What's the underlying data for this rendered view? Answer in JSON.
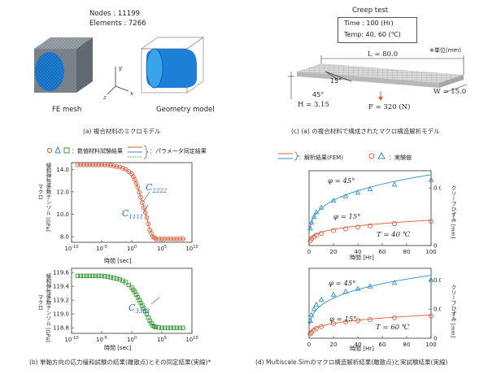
{
  "panel_a": {
    "nodes": "Nodes : 11199",
    "elements": "Elements : 7266",
    "fe_mesh_label": "FE mesh",
    "geometry_label": "Geometry model",
    "axis_x": "x",
    "axis_y": "y",
    "axis_z": "z",
    "caption": "(a) 複合材料のミクロモデル"
  },
  "panel_c": {
    "title": "Creep test",
    "time": "Time : 100 (Hr)",
    "temp": "Temp: 40, 60 (℃)",
    "unit_note": "※単位(mm)",
    "L": "L = 80.0",
    "W": "W = 15.0",
    "H": "H = 3.15",
    "F": "F = 320 (N)",
    "angle15": "15°",
    "angle45": "45°",
    "caption": "(c) (a) の複合材料で構成されたマクロ構造解析モデル"
  },
  "panel_b": {
    "legend_exp": "：数値材料試験結果",
    "legend_fit": "：パラメータ同定結果",
    "ylabel_main": "マクロ",
    "ylabel_sub": "緩和弾性係数テンソル [GPa]",
    "xlabel": "時間 [sec]",
    "top_label_c2222": "C2222",
    "top_label_c1111": "C1111",
    "bottom_label_c3333": "C3333",
    "caption": "(b) 単軸方向の応力緩和試験の結果(離散点)とその同定結果(実線)*"
  },
  "panel_d": {
    "legend_fem": "：解析結果(FEM)",
    "legend_exp": "：実験値",
    "ylabel_right": "クリープひずみ [mm]",
    "xlabel": "時間 [Hr]",
    "phi45": "φ = 45°",
    "phi15": "φ = 15°",
    "temp40": "T = 40 ℃",
    "temp60": "T = 60 ℃",
    "caption": "(d) Multiscale.Simのマクロ構造解析結果(離散点)と実試験結果(実線)"
  },
  "colors": {
    "red": "#e05a3a",
    "blue": "#2f8fd0",
    "green": "#3a9a3a",
    "cube_blue": "#1e7fd6"
  },
  "chart_data": [
    {
      "id": "b_top",
      "type": "scatter",
      "xscale": "log",
      "x_ticks": [
        "10^-10",
        "10^-5",
        "10^0",
        "10^5",
        "10^10"
      ],
      "y_ticks": [
        "14.0",
        "12.0",
        "10.0",
        "8.0"
      ],
      "ylim": [
        7.5,
        14.6
      ],
      "xlim_log10": [
        -10,
        10
      ],
      "series": [
        {
          "name": "C2222",
          "values": [
            [
              -9,
              14.4
            ],
            [
              -8,
              14.4
            ],
            [
              -7,
              14.4
            ],
            [
              -6,
              14.4
            ],
            [
              -5,
              14.4
            ],
            [
              -4,
              14.4
            ],
            [
              -3,
              14.3
            ],
            [
              -2,
              14.2
            ],
            [
              -1,
              14.0
            ],
            [
              0,
              13.6
            ],
            [
              0.5,
              13.1
            ],
            [
              1,
              12.4
            ],
            [
              1.5,
              11.5
            ],
            [
              2,
              10.6
            ],
            [
              2.5,
              9.7
            ],
            [
              3,
              8.6
            ],
            [
              3.5,
              8.0
            ],
            [
              4,
              7.8
            ],
            [
              5,
              7.8
            ],
            [
              6,
              7.8
            ],
            [
              7,
              7.8
            ],
            [
              8,
              7.8
            ],
            [
              9,
              7.8
            ]
          ]
        }
      ]
    },
    {
      "id": "b_bottom",
      "type": "scatter",
      "xscale": "log",
      "x_ticks": [
        "10^-10",
        "10^-5",
        "10^0",
        "10^5",
        "10^10"
      ],
      "y_ticks": [
        "119.6",
        "119.4",
        "119.2",
        "119.0",
        "118.8"
      ],
      "ylim": [
        118.72,
        119.66
      ],
      "xlim_log10": [
        -10,
        10
      ],
      "series": [
        {
          "name": "C3333",
          "values": [
            [
              -9,
              119.55
            ],
            [
              -8,
              119.55
            ],
            [
              -7,
              119.55
            ],
            [
              -6,
              119.55
            ],
            [
              -5,
              119.55
            ],
            [
              -4,
              119.54
            ],
            [
              -3,
              119.52
            ],
            [
              -2,
              119.5
            ],
            [
              -1,
              119.46
            ],
            [
              0,
              119.38
            ],
            [
              0.5,
              119.32
            ],
            [
              1,
              119.24
            ],
            [
              1.5,
              119.16
            ],
            [
              2,
              119.08
            ],
            [
              2.5,
              119.0
            ],
            [
              3,
              118.9
            ],
            [
              3.5,
              118.83
            ],
            [
              4,
              118.81
            ],
            [
              5,
              118.8
            ],
            [
              6,
              118.8
            ],
            [
              7,
              118.8
            ],
            [
              8,
              118.8
            ],
            [
              9,
              118.8
            ]
          ]
        }
      ]
    },
    {
      "id": "d_top",
      "type": "scatter",
      "x_ticks": [
        "0",
        "20",
        "40",
        "60",
        "80",
        "100"
      ],
      "y_ticks_right": [
        "0",
        "0.001"
      ],
      "xlim": [
        0,
        100
      ],
      "ylim": [
        0,
        0.0013
      ],
      "series": [
        {
          "name": "φ = 45° 実験値",
          "values": [
            [
              1,
              0.0003
            ],
            [
              2,
              0.0004
            ],
            [
              4,
              0.0005
            ],
            [
              6,
              0.00058
            ],
            [
              10,
              0.00066
            ],
            [
              20,
              0.00078
            ],
            [
              30,
              0.00086
            ],
            [
              40,
              0.00092
            ],
            [
              50,
              0.00098
            ],
            [
              70,
              0.00106
            ],
            [
              100,
              0.00114
            ]
          ]
        },
        {
          "name": "φ = 15° 実験値",
          "values": [
            [
              1,
              8e-05
            ],
            [
              2,
              0.00012
            ],
            [
              4,
              0.00015
            ],
            [
              6,
              0.00018
            ],
            [
              10,
              0.00021
            ],
            [
              20,
              0.00026
            ],
            [
              30,
              0.00029
            ],
            [
              40,
              0.00032
            ],
            [
              50,
              0.00034
            ],
            [
              70,
              0.00038
            ],
            [
              100,
              0.00042
            ]
          ]
        }
      ]
    },
    {
      "id": "d_bottom",
      "type": "scatter",
      "x_ticks": [
        "0",
        "20",
        "40",
        "60",
        "80",
        "100"
      ],
      "y_ticks_right": [
        "0",
        "0.001",
        "0.002"
      ],
      "xlim": [
        0,
        100
      ],
      "ylim": [
        0,
        0.0024
      ],
      "series": [
        {
          "name": "φ = 45° 実験値",
          "values": [
            [
              1,
              0.0006
            ],
            [
              2,
              0.0008
            ],
            [
              4,
              0.001
            ],
            [
              6,
              0.00115
            ],
            [
              10,
              0.00132
            ],
            [
              20,
              0.0015
            ],
            [
              30,
              0.0016
            ],
            [
              40,
              0.0017
            ],
            [
              50,
              0.00178
            ],
            [
              70,
              0.0019
            ],
            [
              100,
              0.002
            ]
          ]
        },
        {
          "name": "φ = 15° 実験値",
          "values": [
            [
              1,
              0.00015
            ],
            [
              2,
              0.0002
            ],
            [
              4,
              0.00028
            ],
            [
              6,
              0.00034
            ],
            [
              10,
              0.0004
            ],
            [
              20,
              0.0005
            ],
            [
              30,
              0.00056
            ],
            [
              40,
              0.0006
            ],
            [
              50,
              0.00064
            ],
            [
              70,
              0.0007
            ],
            [
              100,
              0.00076
            ]
          ]
        }
      ]
    }
  ]
}
